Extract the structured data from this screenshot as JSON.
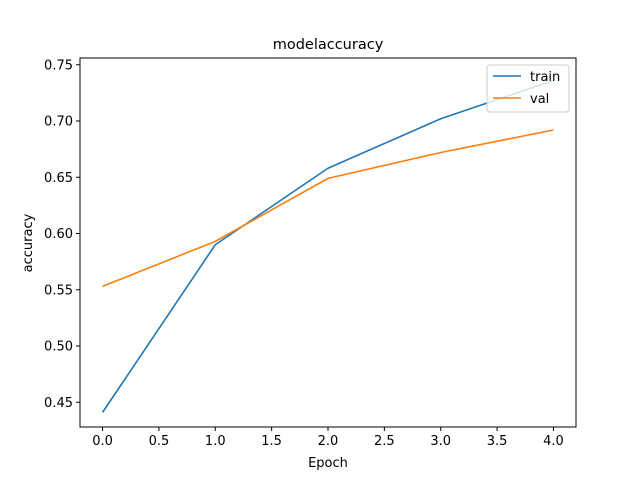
{
  "chart_data": {
    "type": "line",
    "title": "modelaccuracy",
    "xlabel": "Epoch",
    "ylabel": "accuracy",
    "x": [
      0,
      1,
      2,
      3,
      4
    ],
    "xlim": [
      -0.2,
      4.2
    ],
    "ylim": [
      0.428,
      0.756
    ],
    "xticks": [
      "0.0",
      "0.5",
      "1.0",
      "1.5",
      "2.0",
      "2.5",
      "3.0",
      "3.5",
      "4.0"
    ],
    "yticks": [
      "0.45",
      "0.50",
      "0.55",
      "0.60",
      "0.65",
      "0.70",
      "0.75"
    ],
    "grid": false,
    "legend_position": "top-right",
    "series": [
      {
        "name": "train",
        "color": "#1f77b4",
        "values": [
          0.441,
          0.59,
          0.658,
          0.702,
          0.736
        ]
      },
      {
        "name": "val",
        "color": "#ff7f0e",
        "values": [
          0.553,
          0.593,
          0.649,
          0.672,
          0.692
        ]
      }
    ]
  }
}
